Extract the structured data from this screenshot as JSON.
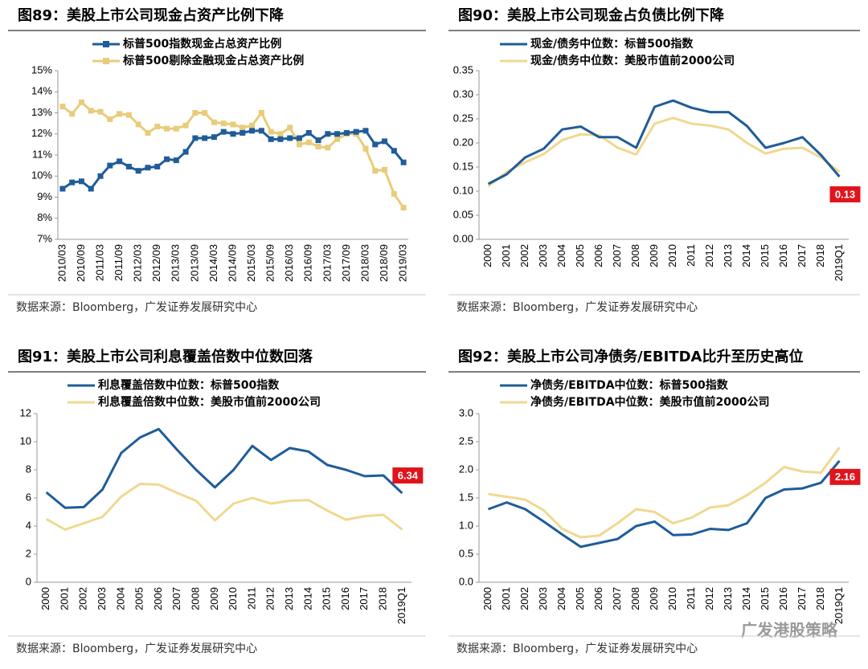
{
  "chart_data": [
    {
      "type": "line",
      "title": "图89：美股上市公司现金占资产比例下降",
      "source": "数据来源：Bloomberg，广发证券发展研究中心",
      "categories": [
        "2010/03",
        null,
        "2010/09",
        null,
        "2011/03",
        null,
        "2011/09",
        null,
        "2012/03",
        null,
        "2012/09",
        null,
        "2013/03",
        null,
        "2013/09",
        null,
        "2014/03",
        null,
        "2014/09",
        null,
        "2015/03",
        null,
        "2015/09",
        null,
        "2016/03",
        null,
        "2016/09",
        null,
        "2017/03",
        null,
        "2017/09",
        null,
        "2018/03",
        null,
        "2018/09",
        null,
        "2019/03"
      ],
      "markers": "square",
      "series": [
        {
          "name": "标普500指数现金占总资产比例",
          "color": "#1f5c99",
          "values": [
            9.4,
            9.7,
            9.75,
            9.4,
            10.0,
            10.5,
            10.7,
            10.45,
            10.25,
            10.4,
            10.45,
            10.8,
            10.75,
            11.15,
            11.8,
            11.8,
            11.85,
            12.1,
            12.0,
            12.05,
            12.15,
            12.15,
            11.75,
            11.75,
            11.8,
            11.8,
            12.05,
            11.7,
            12.0,
            12.0,
            12.05,
            12.1,
            12.15,
            11.5,
            11.65,
            11.2,
            10.65
          ]
        },
        {
          "name": "标普500剔除金融现金占总资产比例",
          "color": "#e8cc7a",
          "values": [
            13.3,
            12.95,
            13.5,
            13.1,
            13.05,
            12.7,
            12.95,
            12.9,
            12.45,
            12.05,
            12.35,
            12.25,
            12.25,
            12.4,
            13.0,
            13.0,
            12.55,
            12.5,
            12.45,
            12.3,
            12.4,
            13.0,
            12.1,
            12.0,
            12.3,
            11.5,
            11.6,
            11.4,
            11.35,
            11.75,
            12.0,
            12.0,
            11.3,
            10.25,
            10.3,
            9.15,
            8.5
          ]
        }
      ],
      "ylim": [
        7,
        15
      ],
      "yticks": [
        {
          "value": 7,
          "label": "7%"
        },
        {
          "value": 8,
          "label": "8%"
        },
        {
          "value": 9,
          "label": "9%"
        },
        {
          "value": 10,
          "label": "10%"
        },
        {
          "value": 11,
          "label": "11%"
        },
        {
          "value": 12,
          "label": "12%"
        },
        {
          "value": 13,
          "label": "13%"
        },
        {
          "value": 14,
          "label": "14%"
        },
        {
          "value": 15,
          "label": "15%"
        }
      ]
    },
    {
      "type": "line",
      "title": "图90：美股上市公司现金占负债比例下降",
      "source": "数据来源：Bloomberg，广发证券发展研究中心",
      "categories": [
        "2000",
        "2001",
        "2002",
        "2003",
        "2004",
        "2005",
        "2006",
        "2007",
        "2008",
        "2009",
        "2010",
        "2011",
        "2012",
        "2013",
        "2014",
        "2015",
        "2016",
        "2017",
        "2018",
        "2019Q1"
      ],
      "series": [
        {
          "name": "现金/债务中位数：标普500指数",
          "color": "#1f5c99",
          "values": [
            0.115,
            0.135,
            0.17,
            0.188,
            0.228,
            0.234,
            0.212,
            0.212,
            0.19,
            0.275,
            0.288,
            0.273,
            0.264,
            0.264,
            0.235,
            0.19,
            0.2,
            0.212,
            0.175,
            0.13
          ],
          "value_labels": [
            null,
            null,
            null,
            null,
            null,
            null,
            null,
            null,
            null,
            null,
            null,
            null,
            null,
            null,
            null,
            null,
            null,
            null,
            null,
            "0.13"
          ]
        },
        {
          "name": "现金/债务中位数：美股市值前2000公司",
          "color": "#f0d890",
          "values": [
            0.11,
            0.14,
            0.16,
            0.177,
            0.206,
            0.218,
            0.216,
            0.19,
            0.176,
            0.24,
            0.252,
            0.24,
            0.236,
            0.228,
            0.2,
            0.178,
            0.188,
            0.19,
            0.17,
            0.14
          ]
        }
      ],
      "ylim": [
        0,
        0.35
      ],
      "yticks": [
        {
          "value": 0,
          "label": "0.00"
        },
        0.05,
        {
          "value": 0.1,
          "label": "0.10"
        },
        0.15,
        {
          "value": 0.2,
          "label": "0.20"
        },
        0.25,
        {
          "value": 0.3,
          "label": "0.30"
        },
        0.35
      ]
    },
    {
      "type": "line",
      "title": "图91：美股上市公司利息覆盖倍数中位数回落",
      "source": "数据来源：Bloomberg，广发证券发展研究中心",
      "categories": [
        "2000",
        "2001",
        "2002",
        "2003",
        "2004",
        "2005",
        "2006",
        "2007",
        "2008",
        "2009",
        "2010",
        "2011",
        "2012",
        "2013",
        "2014",
        "2015",
        "2016",
        "2017",
        "2018",
        "2019Q1"
      ],
      "series": [
        {
          "name": "利息覆盖倍数中位数：标普500指数",
          "color": "#1f5c99",
          "values": [
            6.4,
            5.3,
            5.35,
            6.6,
            9.2,
            10.3,
            10.9,
            9.4,
            8.0,
            6.75,
            8.0,
            9.7,
            8.7,
            9.55,
            9.3,
            8.35,
            8.0,
            7.55,
            7.6,
            6.34
          ],
          "value_labels": [
            null,
            null,
            null,
            null,
            null,
            null,
            null,
            null,
            null,
            null,
            null,
            null,
            null,
            null,
            null,
            null,
            null,
            null,
            null,
            "6.34"
          ]
        },
        {
          "name": "利息覆盖倍数中位数：美股市值前2000公司",
          "color": "#f0d890",
          "values": [
            4.5,
            3.75,
            4.2,
            4.65,
            6.1,
            7.0,
            6.95,
            6.35,
            5.8,
            4.4,
            5.6,
            6.0,
            5.6,
            5.8,
            5.85,
            5.1,
            4.45,
            4.7,
            4.8,
            3.75
          ]
        }
      ],
      "ylim": [
        0,
        12
      ],
      "yticks": [
        0,
        2,
        4,
        6,
        8,
        10,
        12
      ]
    },
    {
      "type": "line",
      "title": "图92：美股上市公司净债务/EBITDA比升至历史高位",
      "source": "数据来源：Bloomberg，广发证券发展研究中心",
      "categories": [
        "2000",
        "2001",
        "2002",
        "2003",
        "2004",
        "2005",
        "2006",
        "2007",
        "2008",
        "2009",
        "2010",
        "2011",
        "2012",
        "2013",
        "2014",
        "2015",
        "2016",
        "2017",
        "2018",
        "2019Q1"
      ],
      "series": [
        {
          "name": "净债务/EBITDA中位数：标普500指数",
          "color": "#1f5c99",
          "values": [
            1.3,
            1.42,
            1.3,
            1.08,
            0.85,
            0.63,
            0.7,
            0.77,
            1.0,
            1.08,
            0.84,
            0.85,
            0.95,
            0.93,
            1.05,
            1.5,
            1.65,
            1.67,
            1.77,
            2.16
          ],
          "value_labels": [
            null,
            null,
            null,
            null,
            null,
            null,
            null,
            null,
            null,
            null,
            null,
            null,
            null,
            null,
            null,
            null,
            null,
            null,
            null,
            "2.16"
          ]
        },
        {
          "name": "净债务/EBITDA中位数：美股市值前2000公司",
          "color": "#f0d890",
          "values": [
            1.57,
            1.52,
            1.47,
            1.28,
            0.95,
            0.8,
            0.83,
            1.05,
            1.3,
            1.25,
            1.05,
            1.15,
            1.33,
            1.37,
            1.55,
            1.77,
            2.05,
            1.97,
            1.95,
            2.4
          ]
        }
      ],
      "ylim": [
        0,
        3.0
      ],
      "yticks": [
        {
          "value": 0,
          "label": "0.0"
        },
        0.5,
        {
          "value": 1,
          "label": "1.0"
        },
        1.5,
        {
          "value": 2,
          "label": "2.0"
        },
        2.5,
        {
          "value": 3,
          "label": "3.0"
        }
      ]
    }
  ],
  "watermark": "广发港股策略"
}
